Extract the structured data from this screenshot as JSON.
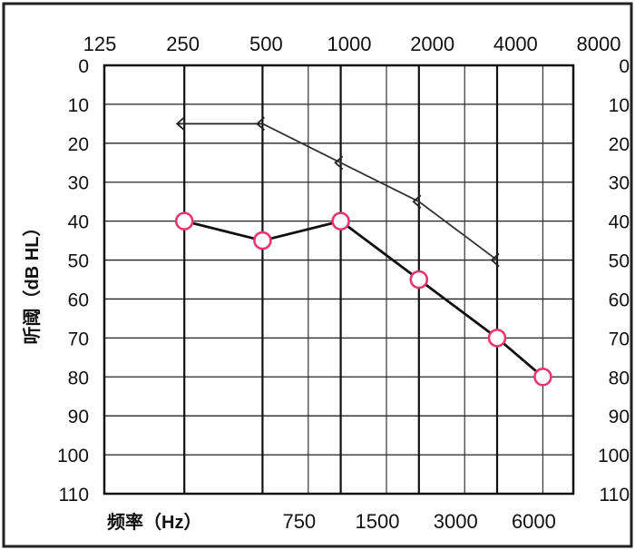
{
  "chart_data": {
    "type": "line",
    "ylabel": "听阈（dB HL）",
    "xlabel": "频率（Hz）",
    "top_ticks": [
      "125",
      "250",
      "500",
      "1000",
      "2000",
      "4000",
      "8000"
    ],
    "bottom_ticks": [
      "750",
      "1500",
      "3000",
      "6000"
    ],
    "y_ticks": [
      "0",
      "10",
      "20",
      "30",
      "40",
      "50",
      "60",
      "70",
      "80",
      "90",
      "100",
      "110"
    ],
    "ylim": [
      0,
      110
    ],
    "y_inverted": true,
    "grid": true,
    "series": [
      {
        "marker": "bone-conduction-bracket",
        "color": "#222222",
        "points": [
          {
            "freq": "250",
            "value": 15,
            "arrow": true
          },
          {
            "freq": "500",
            "value": 15
          },
          {
            "freq": "1000",
            "value": 25
          },
          {
            "freq": "2000",
            "value": 35
          },
          {
            "freq": "4000",
            "value": 50
          }
        ]
      },
      {
        "marker": "circle",
        "color": "#e8356f",
        "points": [
          {
            "freq": "250",
            "value": 40
          },
          {
            "freq": "500",
            "value": 45
          },
          {
            "freq": "1000",
            "value": 40
          },
          {
            "freq": "2000",
            "value": 55
          },
          {
            "freq": "4000",
            "value": 70
          },
          {
            "freq": "6000",
            "value": 80
          }
        ]
      }
    ]
  }
}
